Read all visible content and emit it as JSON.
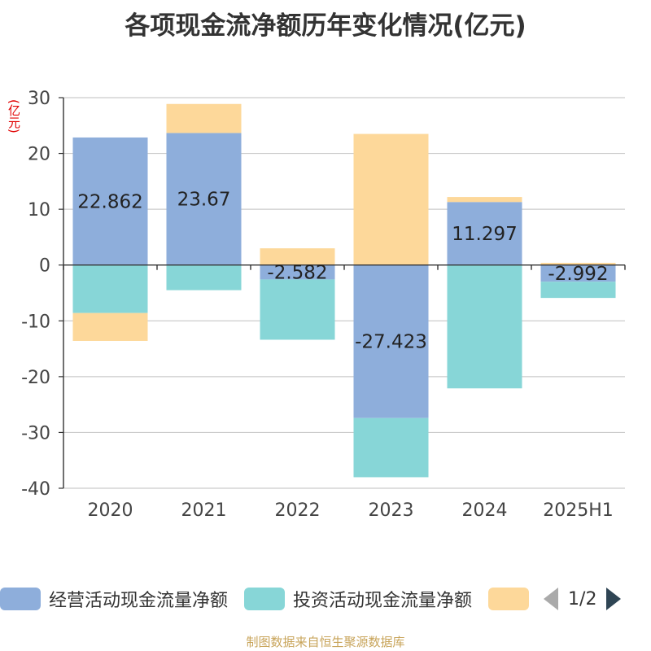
{
  "title": "各项现金流净额历年变化情况(亿元)",
  "unit_label": "(亿元)",
  "source": "制图数据来自恒生聚源数据库",
  "pager": {
    "text": "1/2"
  },
  "chart_data": {
    "type": "bar",
    "stacked": true,
    "categories": [
      "2020",
      "2021",
      "2022",
      "2023",
      "2024",
      "2025H1"
    ],
    "ylim": [
      -40,
      30
    ],
    "yticks": [
      30,
      20,
      10,
      0,
      -10,
      -20,
      -30,
      -40
    ],
    "grid": true,
    "legend_position": "bottom",
    "series": [
      {
        "name": "经营活动现金流量净额",
        "color": "#8eaedb",
        "values": [
          22.862,
          23.67,
          -2.582,
          -27.423,
          11.297,
          -2.992
        ],
        "show_labels": true
      },
      {
        "name": "投资活动现金流量净额",
        "color": "#87d6d7",
        "values": [
          -8.6,
          -4.5,
          -10.8,
          -10.6,
          -22.1,
          -2.9
        ]
      },
      {
        "name": "",
        "color": "#fdd89a",
        "values": [
          -5.0,
          5.2,
          3.0,
          23.5,
          0.9,
          0.4
        ]
      }
    ]
  }
}
